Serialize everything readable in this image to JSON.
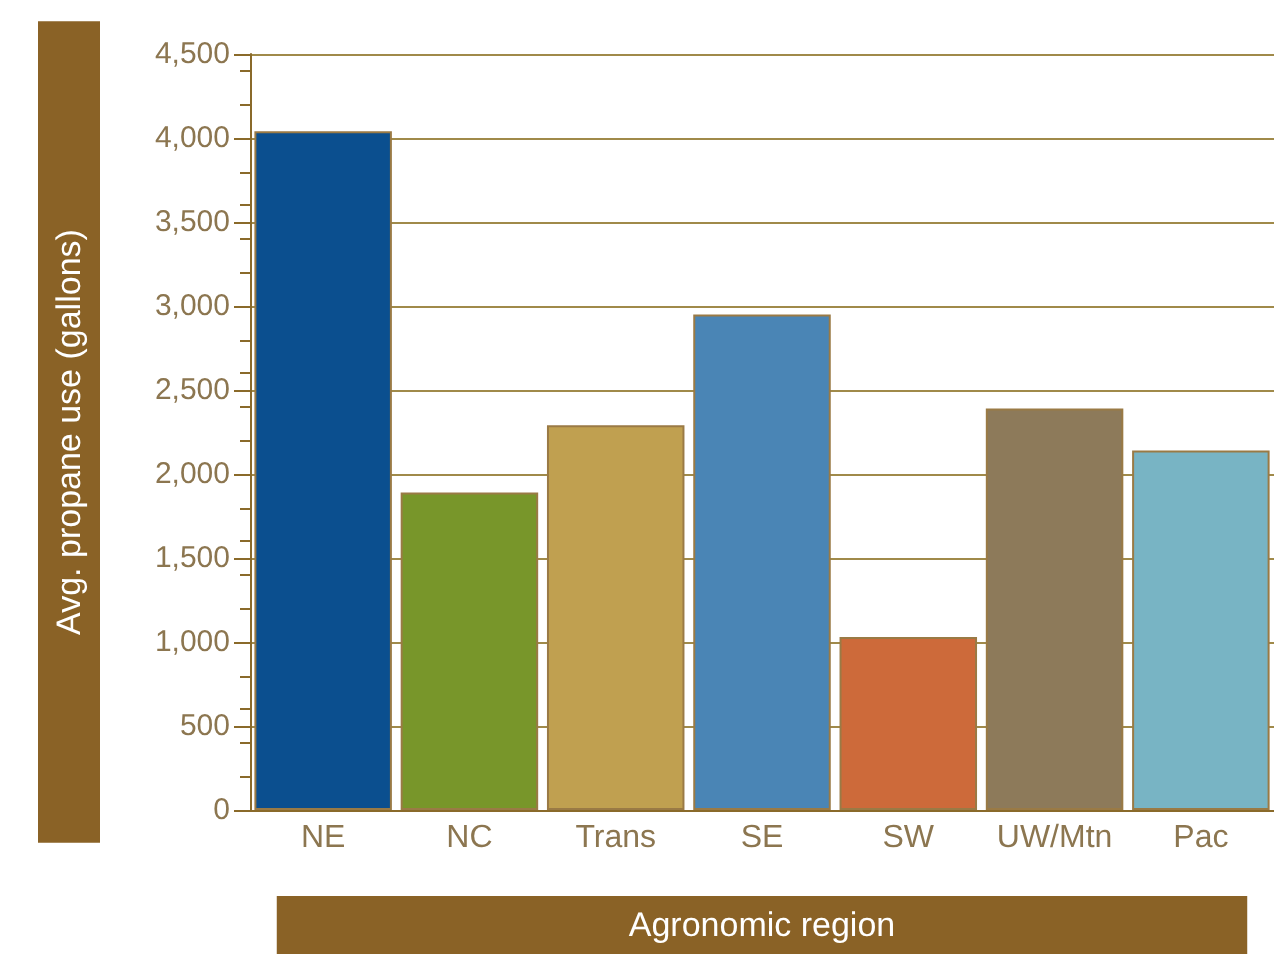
{
  "chart_data": {
    "type": "bar",
    "xlabel": "Agronomic region",
    "ylabel": "Avg. propane use (gallons)",
    "categories": [
      "NE",
      "NC",
      "Trans",
      "SE",
      "SW",
      "UW/Mtn",
      "Pac"
    ],
    "values": [
      4040,
      1890,
      2290,
      2950,
      1030,
      2390,
      2140
    ],
    "colors": [
      "#0b4f8f",
      "#78962a",
      "#c0a050",
      "#4a85b5",
      "#cd6a3a",
      "#8d7a5a",
      "#78b4c4"
    ],
    "ylim": [
      0,
      4500
    ],
    "yticks": [
      0,
      500,
      {
        "value": 1000,
        "label": "1,000"
      },
      {
        "value": 1500,
        "label": "1,500"
      },
      {
        "value": 2000,
        "label": "2,000"
      },
      {
        "value": 2500,
        "label": "2,500"
      },
      {
        "value": 3000,
        "label": "3,000"
      },
      {
        "value": 3500,
        "label": "3,500"
      },
      {
        "value": 4000,
        "label": "4,000"
      },
      {
        "value": 4500,
        "label": "4,500"
      }
    ],
    "grid": "y"
  }
}
